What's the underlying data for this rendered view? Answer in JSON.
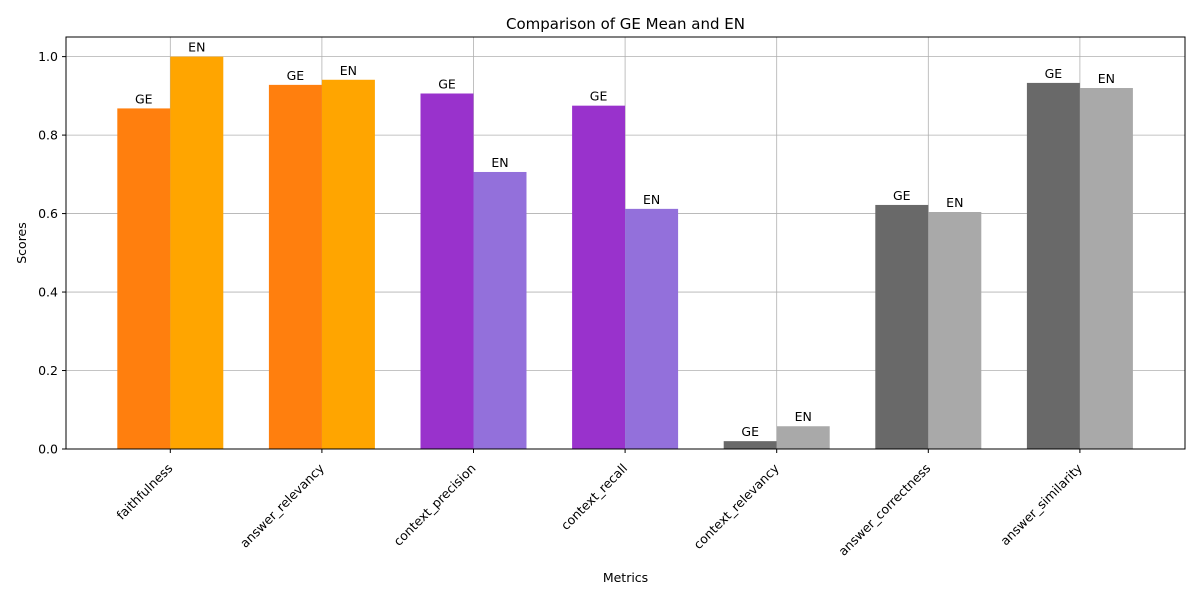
{
  "chart_data": {
    "type": "bar",
    "title": "Comparison of GE Mean and EN",
    "xlabel": "Metrics",
    "ylabel": "Scores",
    "ylim": [
      0,
      1.05
    ],
    "yticks": [
      "0.0",
      "0.2",
      "0.4",
      "0.6",
      "0.8",
      "1.0"
    ],
    "grid": true,
    "categories": [
      "faithfulness",
      "answer_relevancy",
      "context_precision",
      "context_recall",
      "context_relevancy",
      "answer_correctness",
      "answer_similarity"
    ],
    "series": [
      {
        "bar_label": "GE",
        "values": [
          0.868,
          0.928,
          0.906,
          0.875,
          0.02,
          0.622,
          0.933
        ],
        "colors": [
          "#ff7f0e",
          "#ff7f0e",
          "#9932cc",
          "#9932cc",
          "#696969",
          "#696969",
          "#696969"
        ]
      },
      {
        "bar_label": "EN",
        "values": [
          1.0,
          0.941,
          0.706,
          0.612,
          0.058,
          0.604,
          0.92
        ],
        "colors": [
          "#ffa500",
          "#ffa500",
          "#9370db",
          "#9370db",
          "#a9a9a9",
          "#a9a9a9",
          "#a9a9a9"
        ]
      }
    ]
  }
}
